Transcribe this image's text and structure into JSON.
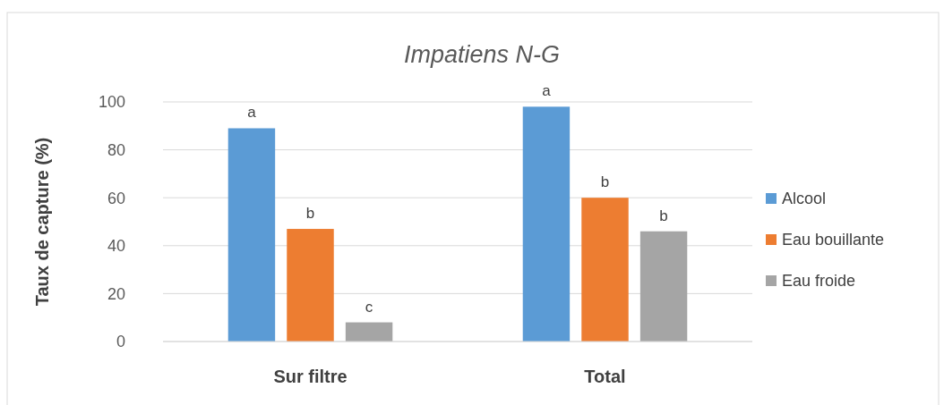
{
  "chart_data": {
    "type": "bar",
    "title": "Impatiens N-G",
    "ylabel": "Taux de capture (%)",
    "categories": [
      "Sur filtre",
      "Total"
    ],
    "series": [
      {
        "name": "Alcool",
        "color": "#5b9bd5",
        "values": [
          89,
          98
        ],
        "value_labels": [
          "a",
          "a"
        ]
      },
      {
        "name": "Eau bouillante",
        "color": "#ed7d31",
        "values": [
          47,
          60
        ],
        "value_labels": [
          "b",
          "b"
        ]
      },
      {
        "name": "Eau froide",
        "color": "#a5a5a5",
        "values": [
          8,
          46
        ],
        "value_labels": [
          "c",
          "b"
        ]
      }
    ],
    "ylim": [
      0,
      100
    ],
    "yticks": [
      0,
      20,
      40,
      60,
      80,
      100
    ],
    "grid": "y",
    "legend": "right"
  }
}
